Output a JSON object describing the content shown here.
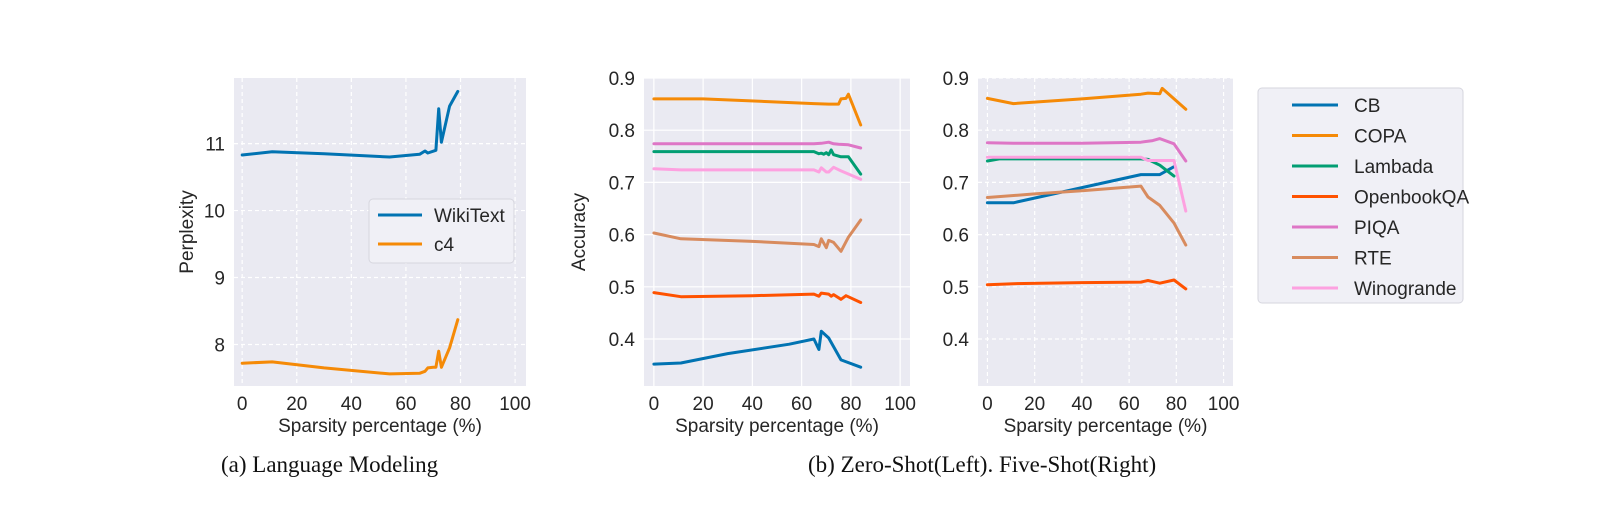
{
  "figure": {
    "captions": {
      "a": "(a) Language Modeling",
      "b": "(b) Zero-Shot(Left). Five-Shot(Right)"
    },
    "colors": {
      "background": "#eaeaf2",
      "grid": "#ffffff",
      "text": "#262626"
    }
  },
  "chart_data": [
    {
      "id": "language-modeling",
      "type": "line",
      "title": "",
      "xlabel": "Sparsity percentage (%)",
      "ylabel": "Perplexity",
      "xlim": [
        -3,
        104
      ],
      "ylim": [
        7.38,
        11.98
      ],
      "xticks": [
        0,
        20,
        40,
        60,
        80,
        100
      ],
      "yticks": [
        8,
        9,
        10,
        11
      ],
      "grid": "dashed",
      "legend": {
        "placement": "center-right",
        "entries": [
          "WikiText",
          "c4"
        ]
      },
      "series": [
        {
          "name": "WikiText",
          "color": "#0173b2",
          "x": [
            0,
            11,
            30,
            54,
            65,
            67,
            68,
            71,
            72,
            73,
            76,
            79
          ],
          "y": [
            10.83,
            10.88,
            10.85,
            10.8,
            10.84,
            10.89,
            10.86,
            10.9,
            11.52,
            11.02,
            11.56,
            11.78
          ]
        },
        {
          "name": "c4",
          "color": "#f58a07",
          "x": [
            0,
            11,
            30,
            54,
            65,
            67,
            68,
            70,
            71,
            72,
            73,
            76,
            79
          ],
          "y": [
            7.72,
            7.74,
            7.65,
            7.56,
            7.57,
            7.6,
            7.65,
            7.66,
            7.66,
            7.9,
            7.66,
            7.95,
            8.37
          ]
        }
      ]
    },
    {
      "id": "zero-shot",
      "type": "line",
      "title": "",
      "xlabel": "Sparsity percentage (%)",
      "ylabel": "Accuracy",
      "xlim": [
        -4,
        104
      ],
      "ylim": [
        0.31,
        0.9
      ],
      "xticks": [
        0,
        20,
        40,
        60,
        80,
        100
      ],
      "yticks": [
        0.4,
        0.5,
        0.6,
        0.7,
        0.8,
        0.9
      ],
      "grid": "solid",
      "legend": null,
      "series": [
        {
          "name": "CB",
          "color": "#0173b2",
          "x": [
            0,
            11,
            30,
            55,
            65,
            67,
            68,
            71,
            76,
            84
          ],
          "y": [
            0.352,
            0.354,
            0.372,
            0.39,
            0.4,
            0.38,
            0.415,
            0.402,
            0.36,
            0.346
          ]
        },
        {
          "name": "COPA",
          "color": "#f58a07",
          "x": [
            0,
            20,
            45,
            65,
            71,
            75,
            76,
            78,
            79,
            84
          ],
          "y": [
            0.86,
            0.86,
            0.855,
            0.851,
            0.85,
            0.85,
            0.86,
            0.861,
            0.869,
            0.81
          ]
        },
        {
          "name": "Lambada",
          "color": "#029e73",
          "x": [
            0,
            30,
            65,
            67,
            68,
            69,
            70,
            71,
            72,
            73,
            76,
            78,
            79,
            84
          ],
          "y": [
            0.759,
            0.759,
            0.759,
            0.755,
            0.756,
            0.754,
            0.757,
            0.753,
            0.762,
            0.753,
            0.749,
            0.749,
            0.749,
            0.716
          ]
        },
        {
          "name": "OpenbookQA",
          "color": "#ff5200",
          "x": [
            0,
            11,
            40,
            65,
            67,
            68,
            71,
            72,
            73,
            76,
            78,
            84
          ],
          "y": [
            0.489,
            0.481,
            0.483,
            0.486,
            0.482,
            0.488,
            0.486,
            0.482,
            0.485,
            0.476,
            0.483,
            0.47
          ]
        },
        {
          "name": "PIQA",
          "color": "#de76c6",
          "x": [
            0,
            30,
            65,
            68,
            71,
            73,
            75,
            79,
            84
          ],
          "y": [
            0.774,
            0.774,
            0.774,
            0.775,
            0.777,
            0.774,
            0.773,
            0.772,
            0.766
          ]
        },
        {
          "name": "RTE",
          "color": "#d88b5e",
          "x": [
            0,
            11,
            40,
            65,
            67,
            68,
            70,
            71,
            73,
            76,
            79,
            84
          ],
          "y": [
            0.603,
            0.592,
            0.587,
            0.581,
            0.577,
            0.592,
            0.575,
            0.589,
            0.585,
            0.568,
            0.595,
            0.628
          ]
        },
        {
          "name": "Winogrande",
          "color": "#fda1e0",
          "x": [
            0,
            11,
            40,
            65,
            67,
            68,
            70,
            71,
            73,
            76,
            84
          ],
          "y": [
            0.726,
            0.724,
            0.724,
            0.724,
            0.72,
            0.728,
            0.72,
            0.72,
            0.729,
            0.722,
            0.706
          ]
        }
      ]
    },
    {
      "id": "five-shot",
      "type": "line",
      "title": "",
      "xlabel": "Sparsity percentage (%)",
      "ylabel": "",
      "xlim": [
        -4,
        104
      ],
      "ylim": [
        0.31,
        0.9
      ],
      "xticks": [
        0,
        20,
        40,
        60,
        80,
        100
      ],
      "yticks": [
        0.4,
        0.5,
        0.6,
        0.7,
        0.8,
        0.9
      ],
      "grid": "dashed",
      "legend": {
        "placement": "outside-right",
        "entries": [
          "CB",
          "COPA",
          "Lambada",
          "OpenbookQA",
          "PIQA",
          "RTE",
          "Winogrande"
        ]
      },
      "series": [
        {
          "name": "CB",
          "color": "#0173b2",
          "x": [
            0,
            11,
            40,
            65,
            68,
            73,
            79
          ],
          "y": [
            0.661,
            0.661,
            0.69,
            0.715,
            0.715,
            0.715,
            0.73
          ]
        },
        {
          "name": "COPA",
          "color": "#f58a07",
          "x": [
            0,
            11,
            40,
            65,
            68,
            73,
            74,
            84
          ],
          "y": [
            0.861,
            0.851,
            0.86,
            0.869,
            0.871,
            0.87,
            0.88,
            0.84
          ]
        },
        {
          "name": "Lambada",
          "color": "#029e73",
          "x": [
            0,
            5,
            40,
            65,
            68,
            73,
            79
          ],
          "y": [
            0.741,
            0.745,
            0.745,
            0.745,
            0.744,
            0.733,
            0.712
          ]
        },
        {
          "name": "OpenbookQA",
          "color": "#ff5200",
          "x": [
            0,
            11,
            40,
            65,
            68,
            70,
            73,
            79,
            84
          ],
          "y": [
            0.504,
            0.506,
            0.508,
            0.509,
            0.512,
            0.51,
            0.507,
            0.513,
            0.496
          ]
        },
        {
          "name": "PIQA",
          "color": "#de76c6",
          "x": [
            0,
            11,
            40,
            65,
            70,
            73,
            79,
            84
          ],
          "y": [
            0.776,
            0.775,
            0.775,
            0.777,
            0.78,
            0.784,
            0.774,
            0.741
          ]
        },
        {
          "name": "RTE",
          "color": "#d88b5e",
          "x": [
            0,
            20,
            40,
            65,
            68,
            73,
            79,
            84
          ],
          "y": [
            0.671,
            0.678,
            0.684,
            0.693,
            0.672,
            0.656,
            0.622,
            0.58
          ]
        },
        {
          "name": "Winogrande",
          "color": "#fda1e0",
          "x": [
            0,
            20,
            40,
            65,
            68,
            73,
            79,
            84
          ],
          "y": [
            0.748,
            0.748,
            0.748,
            0.748,
            0.742,
            0.742,
            0.742,
            0.645
          ]
        }
      ]
    }
  ]
}
